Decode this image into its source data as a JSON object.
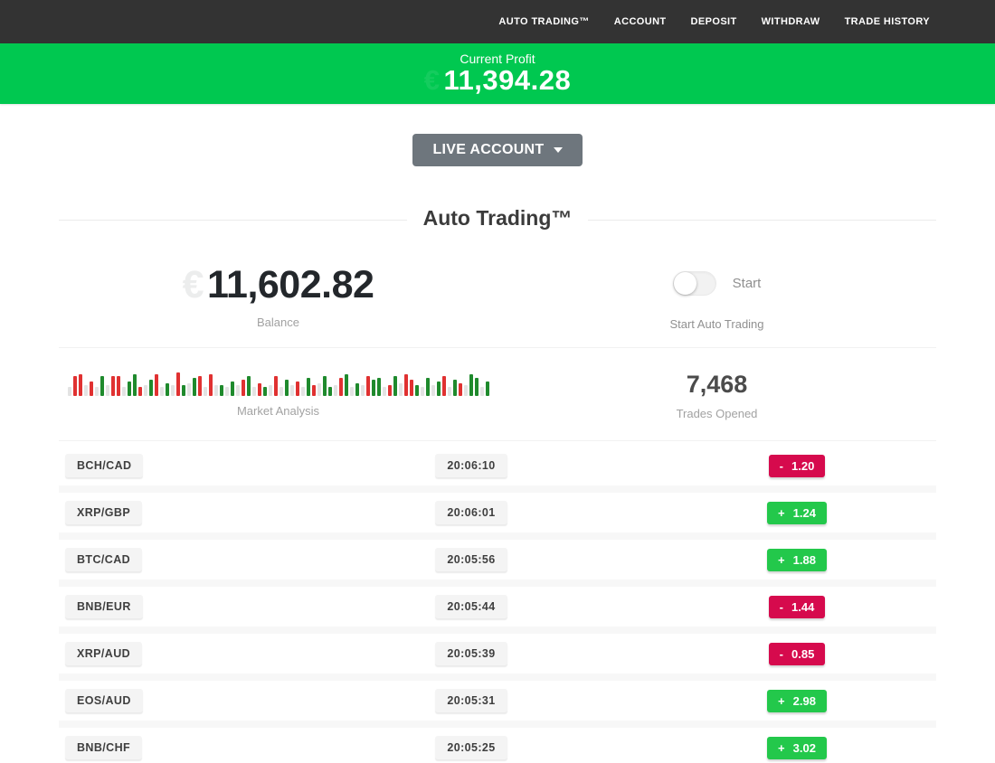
{
  "nav": {
    "items": [
      {
        "label": "AUTO TRADING™"
      },
      {
        "label": "ACCOUNT"
      },
      {
        "label": "DEPOSIT"
      },
      {
        "label": "WITHDRAW"
      },
      {
        "label": "TRADE HISTORY"
      }
    ]
  },
  "banner": {
    "label": "Current Profit",
    "value": "11,394.28",
    "currency_hint": "€"
  },
  "account_selector": {
    "label": "LIVE ACCOUNT"
  },
  "section": {
    "title": "Auto Trading™"
  },
  "stats": {
    "balance": {
      "value": "11,602.82",
      "label": "Balance",
      "currency_hint": "€"
    },
    "auto_trading": {
      "toggle_label": "Start",
      "toggle_state": "off",
      "label": "Start Auto Trading"
    },
    "market": {
      "label": "Market Analysis"
    },
    "trades_opened": {
      "value": "7,468",
      "label": "Trades Opened"
    }
  },
  "chart_data": {
    "type": "bar",
    "title": "Market Analysis",
    "legend": {
      "r": "down-tick",
      "g": "up-tick",
      "n": "neutral-tick"
    },
    "bars": [
      [
        "n",
        10
      ],
      [
        "r",
        22
      ],
      [
        "r",
        24
      ],
      [
        "n",
        12
      ],
      [
        "r",
        16
      ],
      [
        "n",
        10
      ],
      [
        "g",
        22
      ],
      [
        "n",
        12
      ],
      [
        "r",
        22
      ],
      [
        "r",
        22
      ],
      [
        "n",
        10
      ],
      [
        "g",
        16
      ],
      [
        "g",
        24
      ],
      [
        "r",
        10
      ],
      [
        "n",
        12
      ],
      [
        "g",
        18
      ],
      [
        "r",
        24
      ],
      [
        "n",
        10
      ],
      [
        "g",
        14
      ],
      [
        "n",
        12
      ],
      [
        "r",
        26
      ],
      [
        "g",
        12
      ],
      [
        "n",
        14
      ],
      [
        "g",
        20
      ],
      [
        "r",
        22
      ],
      [
        "n",
        10
      ],
      [
        "r",
        24
      ],
      [
        "n",
        12
      ],
      [
        "g",
        12
      ],
      [
        "n",
        10
      ],
      [
        "g",
        16
      ],
      [
        "n",
        12
      ],
      [
        "r",
        18
      ],
      [
        "g",
        22
      ],
      [
        "n",
        10
      ],
      [
        "r",
        14
      ],
      [
        "g",
        10
      ],
      [
        "n",
        12
      ],
      [
        "r",
        22
      ],
      [
        "n",
        10
      ],
      [
        "g",
        18
      ],
      [
        "n",
        12
      ],
      [
        "r",
        16
      ],
      [
        "n",
        10
      ],
      [
        "g",
        20
      ],
      [
        "r",
        12
      ],
      [
        "n",
        14
      ],
      [
        "g",
        22
      ],
      [
        "g",
        10
      ],
      [
        "n",
        12
      ],
      [
        "r",
        20
      ],
      [
        "g",
        24
      ],
      [
        "n",
        10
      ],
      [
        "g",
        14
      ],
      [
        "n",
        12
      ],
      [
        "r",
        22
      ],
      [
        "g",
        18
      ],
      [
        "g",
        20
      ],
      [
        "n",
        10
      ],
      [
        "r",
        12
      ],
      [
        "g",
        22
      ],
      [
        "n",
        14
      ],
      [
        "r",
        24
      ],
      [
        "r",
        18
      ],
      [
        "g",
        12
      ],
      [
        "n",
        10
      ],
      [
        "g",
        20
      ],
      [
        "n",
        12
      ],
      [
        "g",
        16
      ],
      [
        "r",
        22
      ],
      [
        "n",
        10
      ],
      [
        "g",
        18
      ],
      [
        "r",
        14
      ],
      [
        "n",
        12
      ],
      [
        "g",
        24
      ],
      [
        "g",
        20
      ],
      [
        "n",
        10
      ],
      [
        "g",
        16
      ]
    ]
  },
  "trades": {
    "rows": [
      {
        "pair": "BCH/CAD",
        "time": "20:06:10",
        "sign": "-",
        "value": "1.20",
        "type": "loss"
      },
      {
        "pair": "XRP/GBP",
        "time": "20:06:01",
        "sign": "+",
        "value": "1.24",
        "type": "profit"
      },
      {
        "pair": "BTC/CAD",
        "time": "20:05:56",
        "sign": "+",
        "value": "1.88",
        "type": "profit"
      },
      {
        "pair": "BNB/EUR",
        "time": "20:05:44",
        "sign": "-",
        "value": "1.44",
        "type": "loss"
      },
      {
        "pair": "XRP/AUD",
        "time": "20:05:39",
        "sign": "-",
        "value": "0.85",
        "type": "loss"
      },
      {
        "pair": "EOS/AUD",
        "time": "20:05:31",
        "sign": "+",
        "value": "2.98",
        "type": "profit"
      },
      {
        "pair": "BNB/CHF",
        "time": "20:05:25",
        "sign": "+",
        "value": "3.02",
        "type": "profit"
      }
    ]
  },
  "colors": {
    "nav-bg": "#333333",
    "banner-green": "#00c850",
    "green": "#23c84b",
    "red": "#d60a4d",
    "btn-gray": "#6e767d"
  }
}
